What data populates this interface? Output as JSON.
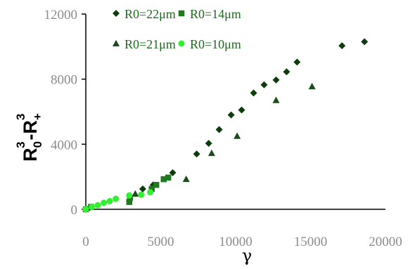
{
  "chart_data": {
    "type": "scatter",
    "xlabel": "γ",
    "ylabel": {
      "base1": "R",
      "sub1": "0",
      "sup1": "3",
      "minus": "-",
      "base2": "R",
      "sub2": "+",
      "sup2": "3"
    },
    "xlim": [
      0,
      20000
    ],
    "ylim": [
      0,
      12000
    ],
    "x_ticks": [
      "0",
      "5000",
      "10000",
      "15000",
      "20000"
    ],
    "y_ticks": [
      "0",
      "4000",
      "8000",
      "12000"
    ],
    "grid": false,
    "legend_position": "top",
    "series": [
      {
        "name": "R0=22μm",
        "marker": "diamond",
        "color": "#0d3d0d",
        "points": [
          [
            0,
            0
          ],
          [
            250,
            100
          ],
          [
            3800,
            1250
          ],
          [
            4500,
            1500
          ],
          [
            5800,
            2250
          ],
          [
            7400,
            3400
          ],
          [
            8200,
            4050
          ],
          [
            8900,
            4900
          ],
          [
            9700,
            5800
          ],
          [
            10400,
            6100
          ],
          [
            11200,
            7150
          ],
          [
            11900,
            7650
          ],
          [
            12700,
            7950
          ],
          [
            13400,
            8450
          ],
          [
            14100,
            9050
          ],
          [
            15700,
            9800
          ],
          [
            17100,
            10050
          ],
          [
            18600,
            10300
          ]
        ]
      },
      {
        "name": "R0=14μm",
        "marker": "square",
        "color": "#1f7a1f",
        "points": [
          [
            0,
            0
          ],
          [
            350,
            150
          ],
          [
            2900,
            450
          ],
          [
            2950,
            700
          ],
          [
            4400,
            1250
          ],
          [
            4700,
            1500
          ],
          [
            5200,
            1850
          ],
          [
            5500,
            1950
          ]
        ]
      },
      {
        "name": "R0=21μm",
        "marker": "triangle",
        "color": "#1a4d1a",
        "points": [
          [
            3300,
            950
          ],
          [
            6700,
            1850
          ],
          [
            8400,
            3450
          ],
          [
            10100,
            4500
          ],
          [
            12700,
            6700
          ],
          [
            15100,
            7550
          ]
        ]
      },
      {
        "name": "R0=10μm",
        "marker": "circle",
        "color": "#33ee33",
        "points": [
          [
            0,
            0
          ],
          [
            400,
            150
          ],
          [
            800,
            250
          ],
          [
            1200,
            400
          ],
          [
            1600,
            500
          ],
          [
            2000,
            650
          ],
          [
            2900,
            850
          ],
          [
            3700,
            900
          ],
          [
            4300,
            1050
          ]
        ]
      }
    ]
  }
}
